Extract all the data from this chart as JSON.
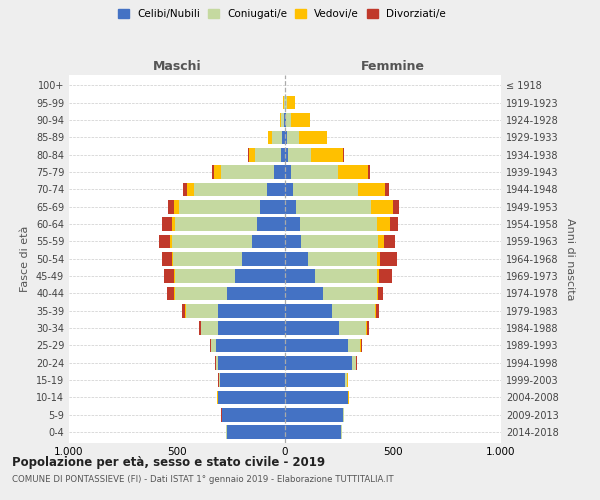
{
  "age_groups": [
    "0-4",
    "5-9",
    "10-14",
    "15-19",
    "20-24",
    "25-29",
    "30-34",
    "35-39",
    "40-44",
    "45-49",
    "50-54",
    "55-59",
    "60-64",
    "65-69",
    "70-74",
    "75-79",
    "80-84",
    "85-89",
    "90-94",
    "95-99",
    "100+"
  ],
  "birth_years": [
    "2014-2018",
    "2009-2013",
    "2004-2008",
    "1999-2003",
    "1994-1998",
    "1989-1993",
    "1984-1988",
    "1979-1983",
    "1974-1978",
    "1969-1973",
    "1964-1968",
    "1959-1963",
    "1954-1958",
    "1949-1953",
    "1944-1948",
    "1939-1943",
    "1934-1938",
    "1929-1933",
    "1924-1928",
    "1919-1923",
    "≤ 1918"
  ],
  "maschi": {
    "celibi": [
      270,
      290,
      310,
      300,
      310,
      320,
      310,
      310,
      270,
      230,
      200,
      155,
      130,
      115,
      85,
      50,
      20,
      12,
      4,
      2,
      0
    ],
    "coniugati": [
      2,
      2,
      2,
      4,
      8,
      22,
      78,
      148,
      238,
      278,
      318,
      368,
      378,
      378,
      338,
      248,
      118,
      48,
      13,
      4,
      0
    ],
    "vedovi": [
      1,
      1,
      1,
      2,
      2,
      2,
      2,
      3,
      5,
      5,
      5,
      10,
      15,
      20,
      30,
      30,
      28,
      18,
      8,
      4,
      0
    ],
    "divorziati": [
      1,
      1,
      1,
      2,
      3,
      5,
      10,
      18,
      32,
      48,
      48,
      52,
      48,
      28,
      18,
      8,
      4,
      2,
      0,
      0,
      0
    ]
  },
  "femmine": {
    "nubili": [
      260,
      270,
      290,
      280,
      310,
      290,
      248,
      218,
      178,
      138,
      108,
      72,
      68,
      52,
      38,
      28,
      12,
      8,
      6,
      2,
      0
    ],
    "coniugate": [
      2,
      2,
      3,
      8,
      18,
      58,
      128,
      198,
      248,
      288,
      318,
      358,
      358,
      348,
      298,
      218,
      108,
      58,
      22,
      8,
      0
    ],
    "vedove": [
      1,
      1,
      1,
      2,
      2,
      2,
      2,
      3,
      5,
      10,
      15,
      28,
      58,
      98,
      128,
      138,
      148,
      128,
      88,
      38,
      0
    ],
    "divorziate": [
      1,
      1,
      1,
      2,
      3,
      5,
      10,
      14,
      22,
      58,
      78,
      52,
      38,
      28,
      18,
      8,
      4,
      0,
      0,
      0,
      0
    ]
  },
  "colors": {
    "celibi": "#4472c4",
    "coniugati": "#c5d9a0",
    "vedovi": "#ffc000",
    "divorziati": "#c0392b"
  },
  "title": "Popolazione per età, sesso e stato civile - 2019",
  "subtitle": "COMUNE DI PONTASSIEVE (FI) - Dati ISTAT 1° gennaio 2019 - Elaborazione TUTTITALIA.IT",
  "xlabel_left": "Maschi",
  "xlabel_right": "Femmine",
  "ylabel_left": "Fasce di età",
  "ylabel_right": "Anni di nascita",
  "xlim": 1000,
  "bg_color": "#eeeeee",
  "plot_bg": "#ffffff"
}
